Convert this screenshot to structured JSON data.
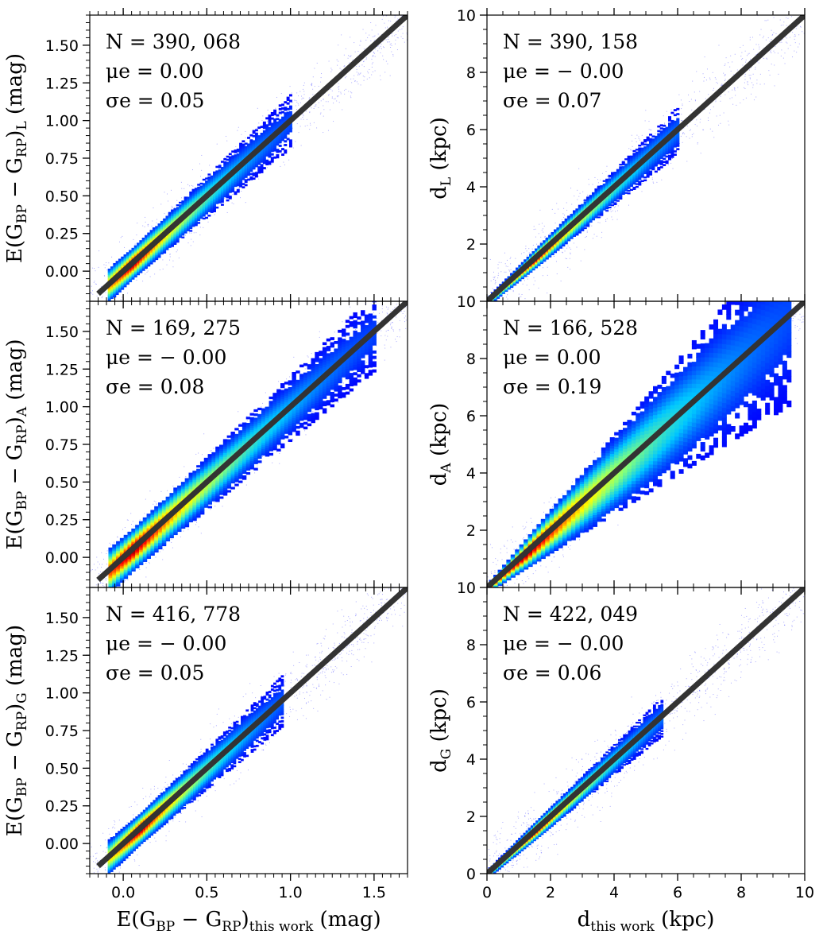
{
  "chart_data": [
    {
      "type": "scatter",
      "panel": "top-left",
      "ylabel": "E(G_BP − G_RP)_L (mag)",
      "xlim": [
        -0.2,
        1.7
      ],
      "ylim": [
        -0.2,
        1.7
      ],
      "xticks": [
        "0.0",
        "0.5",
        "1.0",
        "1.5"
      ],
      "yticks": [
        "0.00",
        "0.25",
        "0.50",
        "0.75",
        "1.00",
        "1.25",
        "1.50"
      ],
      "stats": {
        "n": "N = 390, 068",
        "mu": "μe = 0.00",
        "sigma": "σe = 0.05"
      },
      "one_to_one": [
        [
          -0.15,
          -0.15
        ],
        [
          1.7,
          1.7
        ]
      ],
      "density": {
        "spread": 0.05,
        "x_range": [
          -0.1,
          1.0
        ],
        "core": [
          0.05,
          0.05
        ]
      }
    },
    {
      "type": "scatter",
      "panel": "top-right",
      "ylabel": "d_L (kpc)",
      "xlim": [
        0,
        10
      ],
      "ylim": [
        0,
        10
      ],
      "xticks": [
        "0",
        "2",
        "4",
        "6",
        "8",
        "10"
      ],
      "yticks": [
        "2",
        "4",
        "6",
        "8",
        "10"
      ],
      "stats": {
        "n": "N = 390, 158",
        "mu": "μe = − 0.00",
        "sigma": "σe = 0.07"
      },
      "one_to_one": [
        [
          0,
          0
        ],
        [
          10,
          10
        ]
      ],
      "density": {
        "spread": 0.07,
        "x_range": [
          0,
          6
        ],
        "core": [
          1.5,
          1.5
        ]
      }
    },
    {
      "type": "scatter",
      "panel": "middle-left",
      "ylabel": "E(G_BP − G_RP)_A (mag)",
      "xlim": [
        -0.2,
        1.7
      ],
      "ylim": [
        -0.2,
        1.7
      ],
      "xticks": [
        "0.0",
        "0.5",
        "1.0",
        "1.5"
      ],
      "yticks": [
        "0.00",
        "0.25",
        "0.50",
        "0.75",
        "1.00",
        "1.25",
        "1.50"
      ],
      "stats": {
        "n": "N = 169, 275",
        "mu": "μe = − 0.00",
        "sigma": "σe = 0.08"
      },
      "one_to_one": [
        [
          -0.15,
          -0.15
        ],
        [
          1.7,
          1.7
        ]
      ],
      "density": {
        "spread": 0.08,
        "x_range": [
          -0.1,
          1.5
        ],
        "core": [
          0.05,
          0.05
        ]
      }
    },
    {
      "type": "scatter",
      "panel": "middle-right",
      "ylabel": "d_A (kpc)",
      "xlim": [
        0,
        10
      ],
      "ylim": [
        0,
        10
      ],
      "xticks": [
        "0",
        "2",
        "4",
        "6",
        "8",
        "10"
      ],
      "yticks": [
        "2",
        "4",
        "6",
        "8",
        "10"
      ],
      "stats": {
        "n": "N = 166, 528",
        "mu": "μe = 0.00",
        "sigma": "σe = 0.19"
      },
      "one_to_one": [
        [
          0,
          0
        ],
        [
          10,
          10
        ]
      ],
      "density": {
        "spread": 0.19,
        "x_range": [
          0,
          9.5
        ],
        "core": [
          1.2,
          1.2
        ]
      }
    },
    {
      "type": "scatter",
      "panel": "bottom-left",
      "xlabel": "E(G_BP − G_RP)_this work (mag)",
      "ylabel": "E(G_BP − G_RP)_G (mag)",
      "xlim": [
        -0.2,
        1.7
      ],
      "ylim": [
        -0.2,
        1.7
      ],
      "xticks": [
        "0.0",
        "0.5",
        "1.0",
        "1.5"
      ],
      "yticks": [
        "0.00",
        "0.25",
        "0.50",
        "0.75",
        "1.00",
        "1.25",
        "1.50"
      ],
      "stats": {
        "n": "N = 416, 778",
        "mu": "μe = − 0.00",
        "sigma": "σe = 0.05"
      },
      "one_to_one": [
        [
          -0.15,
          -0.15
        ],
        [
          1.7,
          1.7
        ]
      ],
      "density": {
        "spread": 0.05,
        "x_range": [
          -0.1,
          0.95
        ],
        "core": [
          0.1,
          0.1
        ]
      }
    },
    {
      "type": "scatter",
      "panel": "bottom-right",
      "xlabel": "d_this work (kpc)",
      "ylabel": "d_G (kpc)",
      "xlim": [
        0,
        10
      ],
      "ylim": [
        0,
        10
      ],
      "xticks": [
        "0",
        "2",
        "4",
        "6",
        "8",
        "10"
      ],
      "yticks": [
        "0",
        "2",
        "4",
        "6",
        "8",
        "10"
      ],
      "stats": {
        "n": "N = 422, 049",
        "mu": "μe = − 0.00",
        "sigma": "σe = 0.06"
      },
      "one_to_one": [
        [
          0,
          0
        ],
        [
          10,
          10
        ]
      ],
      "density": {
        "spread": 0.06,
        "x_range": [
          0,
          5.5
        ],
        "core": [
          1.5,
          1.5
        ]
      }
    }
  ],
  "colors": {
    "line": "#333333",
    "sparse": "#1010ff",
    "cmap": [
      "#0000ff",
      "#00c8ff",
      "#80ff80",
      "#ffff00",
      "#ff8000",
      "#ff0000",
      "#8b0000"
    ]
  }
}
